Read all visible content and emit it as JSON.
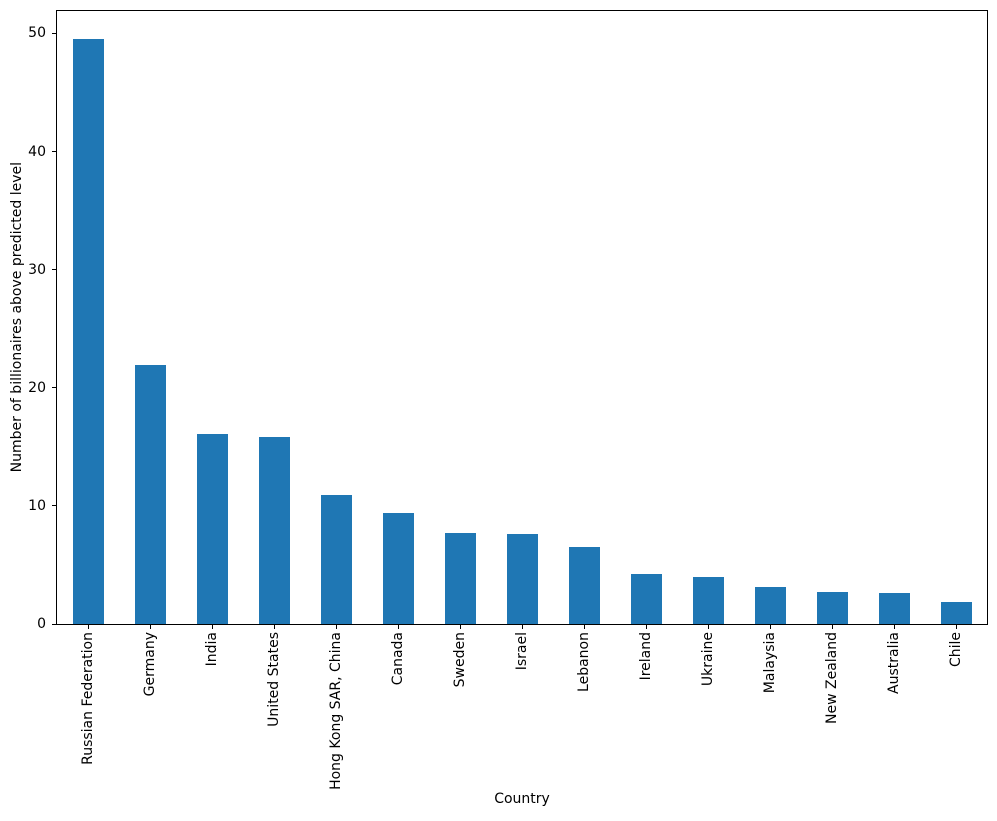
{
  "chart_data": {
    "type": "bar",
    "xlabel": "Country",
    "ylabel": "Number of billionaires above predicted level",
    "categories": [
      "Russian Federation",
      "Germany",
      "India",
      "United States",
      "Hong Kong SAR, China",
      "Canada",
      "Sweden",
      "Israel",
      "Lebanon",
      "Ireland",
      "Ukraine",
      "Malaysia",
      "New Zealand",
      "Australia",
      "Chile"
    ],
    "values": [
      49.5,
      21.9,
      16.1,
      15.8,
      10.9,
      9.4,
      7.7,
      7.6,
      6.5,
      4.2,
      4.0,
      3.1,
      2.7,
      2.6,
      1.9
    ],
    "yticks": [
      0,
      10,
      20,
      30,
      40,
      50
    ],
    "ylim": [
      0,
      51.9
    ],
    "bar_color": "#1f77b4",
    "background_color": "#ffffff",
    "grid": false,
    "legend_position": "none",
    "xtick_rotation_deg": 90
  }
}
